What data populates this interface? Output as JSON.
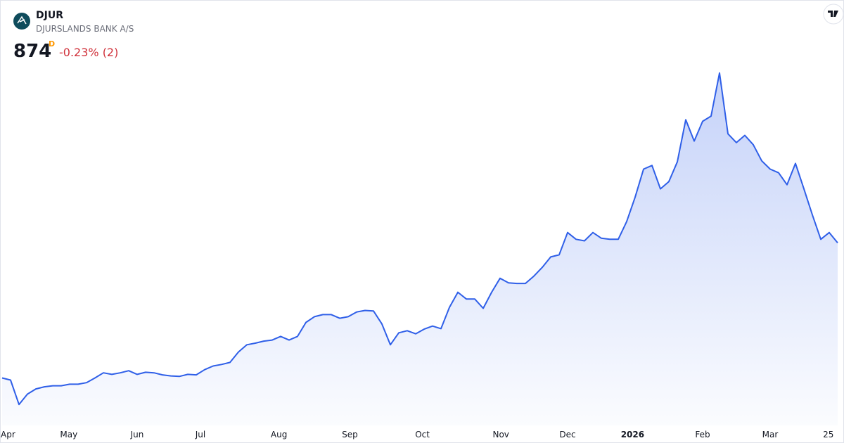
{
  "header": {
    "symbol": "DJUR",
    "name": "DJURSLANDS BANK A/S",
    "price": 874,
    "price_flag": "D",
    "change": "-0.23% (2)"
  },
  "chart_data": {
    "type": "area",
    "color": "#2f5fe8",
    "values": [
      614,
      610,
      563,
      583,
      593,
      597,
      599,
      599,
      602,
      602,
      605,
      614,
      624,
      621,
      624,
      628,
      621,
      625,
      624,
      620,
      618,
      617,
      621,
      620,
      630,
      637,
      640,
      644,
      664,
      678,
      681,
      685,
      687,
      694,
      687,
      694,
      721,
      732,
      736,
      736,
      729,
      732,
      741,
      744,
      743,
      718,
      678,
      701,
      705,
      699,
      708,
      714,
      709,
      750,
      779,
      766,
      766,
      748,
      779,
      806,
      797,
      796,
      796,
      810,
      827,
      847,
      851,
      894,
      881,
      878,
      894,
      883,
      881,
      881,
      915,
      962,
      1016,
      1023,
      978,
      992,
      1030,
      1111,
      1070,
      1108,
      1118,
      1201,
      1084,
      1067,
      1081,
      1063,
      1032,
      1016,
      1009,
      986,
      1027,
      978,
      928,
      881,
      894,
      874
    ],
    "xlim": [
      0,
      99
    ],
    "ylim": [
      520,
      1240
    ],
    "xticks": [
      {
        "value": 0.7,
        "label": "Apr"
      },
      {
        "value": 7.9,
        "label": "May"
      },
      {
        "value": 16,
        "label": "Jun"
      },
      {
        "value": 23.5,
        "label": "Jul"
      },
      {
        "value": 32.8,
        "label": "Aug"
      },
      {
        "value": 41.2,
        "label": "Sep"
      },
      {
        "value": 49.8,
        "label": "Oct"
      },
      {
        "value": 59.1,
        "label": "Nov"
      },
      {
        "value": 67,
        "label": "Dec"
      },
      {
        "value": 74.7,
        "label": "2026"
      },
      {
        "value": 83,
        "label": "Feb"
      },
      {
        "value": 91,
        "label": "Mar"
      },
      {
        "value": 97.9,
        "label": "25"
      }
    ]
  }
}
